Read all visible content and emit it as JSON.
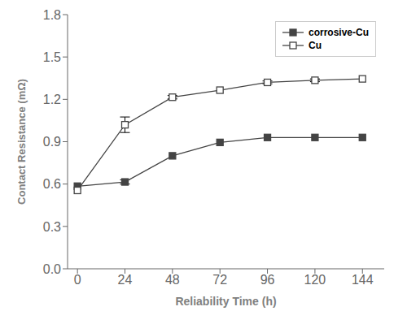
{
  "chart_data": {
    "type": "line",
    "x": [
      0,
      24,
      48,
      72,
      96,
      120,
      144
    ],
    "series": [
      {
        "name": "corrosive-Cu",
        "color": "#444444",
        "marker": "filled_square",
        "values": [
          0.585,
          0.615,
          0.8,
          0.895,
          0.93,
          0.93,
          0.93
        ],
        "yerr": [
          0.0,
          0.015,
          0.0,
          0.0,
          0.0,
          0.0,
          0.0
        ]
      },
      {
        "name": "Cu",
        "color": "#444444",
        "marker": "open_square",
        "values": [
          0.555,
          1.02,
          1.215,
          1.265,
          1.32,
          1.335,
          1.345
        ],
        "yerr": [
          0.0,
          0.055,
          0.012,
          0.0,
          0.01,
          0.01,
          0.0
        ]
      }
    ],
    "xlabel": "Reliability Time (h)",
    "ylabel": "Contact Resistance (mΩ)",
    "xlim": [
      -5,
      155
    ],
    "ylim": [
      0.0,
      1.8
    ],
    "xticks": [
      0,
      24,
      48,
      72,
      96,
      120,
      144
    ],
    "yticks": [
      {
        "value": 0.0,
        "label": "0.0"
      },
      0.3,
      0.6,
      0.9,
      1.2,
      1.5,
      1.8
    ],
    "legend": "upper right",
    "grid": false
  }
}
